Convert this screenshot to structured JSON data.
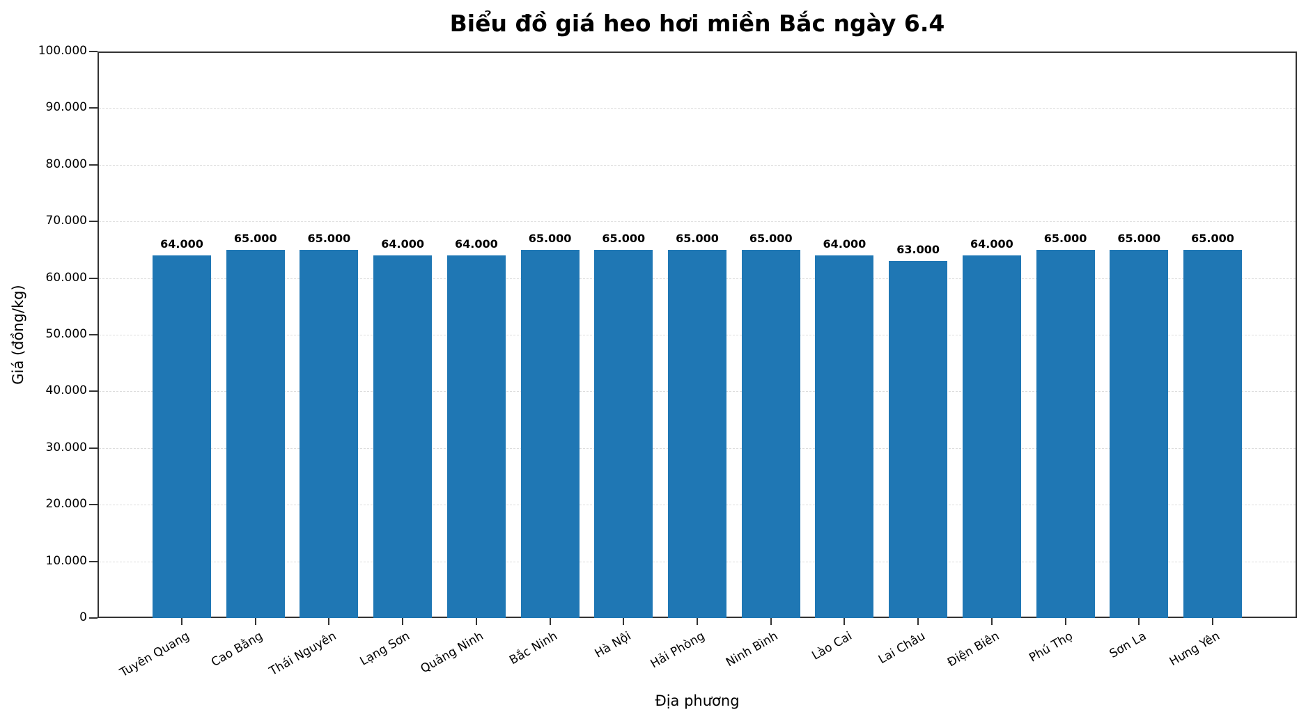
{
  "chart_data": {
    "type": "bar",
    "title": "Biểu đồ giá heo hơi miền Bắc ngày 6.4",
    "xlabel": "Địa phương",
    "ylabel": "Giá (đồng/kg)",
    "ylim": [
      0,
      100000
    ],
    "yticks": [
      0,
      10000,
      20000,
      30000,
      40000,
      50000,
      60000,
      70000,
      80000,
      90000,
      100000
    ],
    "ytick_labels": [
      "0",
      "10.000",
      "20.000",
      "30.000",
      "40.000",
      "50.000",
      "60.000",
      "70.000",
      "80.000",
      "90.000",
      "100.000"
    ],
    "grid": "y dashed",
    "bar_color": "#1f77b4",
    "categories": [
      "Tuyên Quang",
      "Cao Bằng",
      "Thái Nguyên",
      "Lạng Sơn",
      "Quảng Ninh",
      "Bắc Ninh",
      "Hà Nội",
      "Hải Phòng",
      "Ninh Bình",
      "Lào Cai",
      "Lai Châu",
      "Điện Biên",
      "Phú Thọ",
      "Sơn La",
      "Hưng Yên"
    ],
    "values": [
      64000,
      65000,
      65000,
      64000,
      64000,
      65000,
      65000,
      65000,
      65000,
      64000,
      63000,
      64000,
      65000,
      65000,
      65000
    ],
    "value_labels": [
      "64.000",
      "65.000",
      "65.000",
      "64.000",
      "64.000",
      "65.000",
      "65.000",
      "65.000",
      "65.000",
      "64.000",
      "63.000",
      "64.000",
      "65.000",
      "65.000",
      "65.000"
    ]
  }
}
